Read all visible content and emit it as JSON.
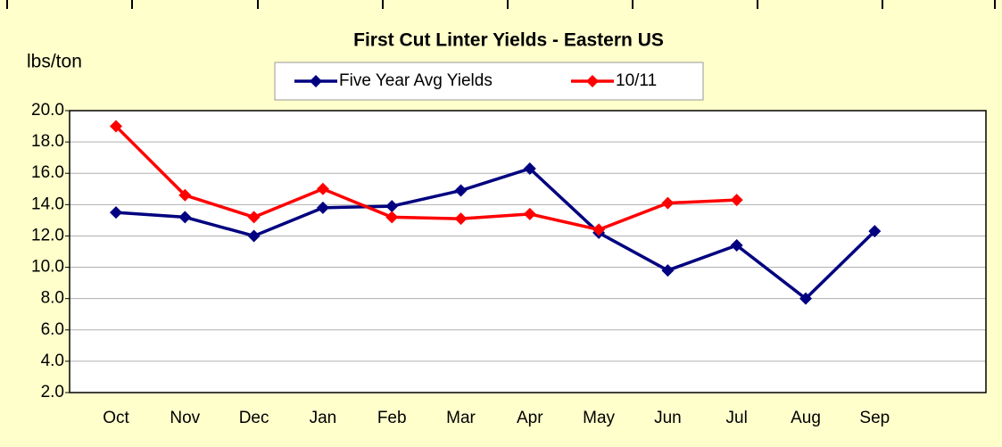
{
  "chart_data": {
    "type": "line",
    "title": "First Cut Linter Yields - Eastern US",
    "y_label": "lbs/ton",
    "categories": [
      "Oct",
      "Nov",
      "Dec",
      "Jan",
      "Feb",
      "Mar",
      "Apr",
      "May",
      "Jun",
      "Jul",
      "Aug",
      "Sep"
    ],
    "series": [
      {
        "name": "Five Year Avg Yields",
        "color": "#000080",
        "values": [
          13.5,
          13.2,
          12.0,
          13.8,
          13.9,
          14.9,
          16.3,
          12.2,
          9.8,
          11.4,
          8.0,
          12.3
        ]
      },
      {
        "name": "10/11",
        "color": "#ff0000",
        "values": [
          19.0,
          14.6,
          13.2,
          15.0,
          13.2,
          13.1,
          13.4,
          12.4,
          14.1,
          14.3,
          null,
          null
        ]
      }
    ],
    "ylim": [
      2,
      20
    ],
    "yticks": [
      {
        "value": 2,
        "label": "2.0"
      },
      {
        "value": 4,
        "label": "4.0"
      },
      {
        "value": 6,
        "label": "6.0"
      },
      {
        "value": 8,
        "label": "8.0"
      },
      {
        "value": 10,
        "label": "10.0"
      },
      {
        "value": 12,
        "label": "12.0"
      },
      {
        "value": 14,
        "label": "14.0"
      },
      {
        "value": 16,
        "label": "16.0"
      },
      {
        "value": 18,
        "label": "18.0"
      },
      {
        "value": 20,
        "label": "20.0"
      }
    ],
    "grid": true
  }
}
